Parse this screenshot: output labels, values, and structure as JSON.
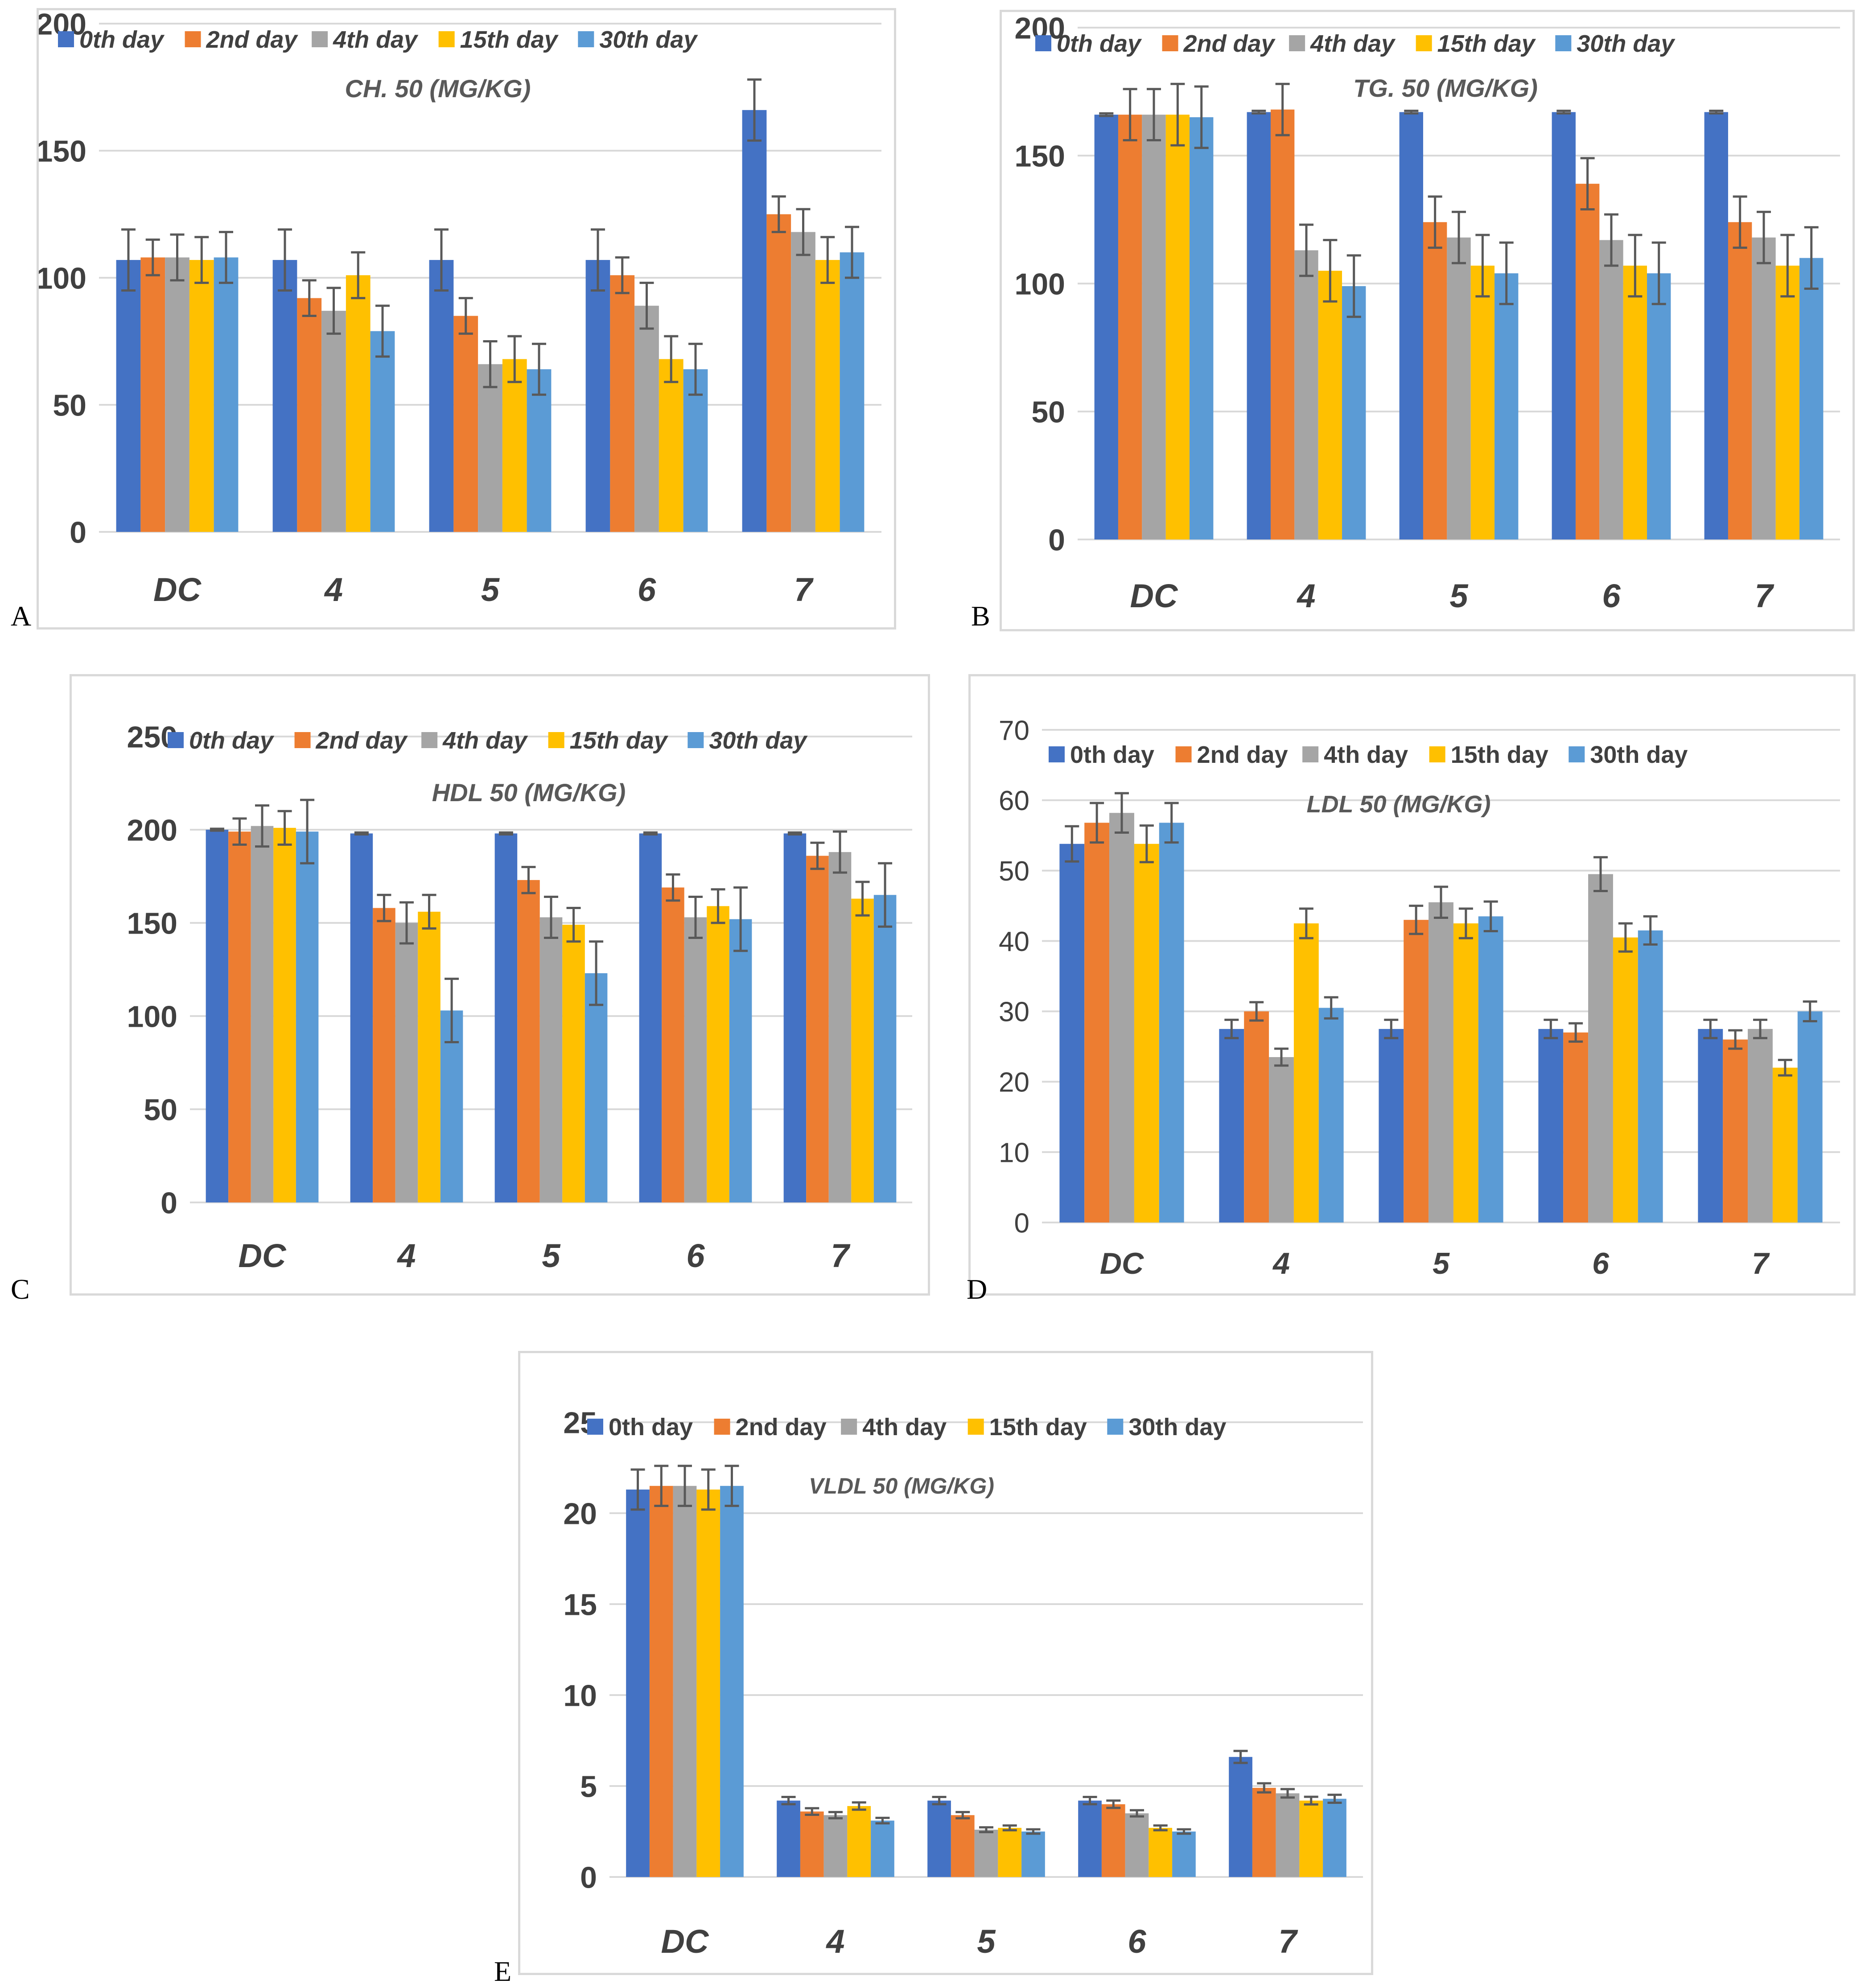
{
  "panel_labels": [
    "A",
    "B",
    "C",
    "D",
    "E"
  ],
  "colors": {
    "series": [
      "#4472C4",
      "#ED7D31",
      "#A5A5A5",
      "#FFC000",
      "#5B9BD5"
    ],
    "grid": "#d9d9d9",
    "error_bar": "#595959",
    "title": "#595959",
    "tick_text": "#404040"
  },
  "chart_data": [
    {
      "type": "bar",
      "title": "CH. 50 (MG/KG)",
      "categories": [
        "DC",
        "4",
        "5",
        "6",
        "7"
      ],
      "ylim": [
        0,
        200
      ],
      "yticks": [
        "0",
        "50",
        "100",
        "150",
        "200"
      ],
      "legend_position": "top",
      "series": [
        {
          "name": "0th day",
          "values": [
            107,
            107,
            107,
            107,
            166
          ],
          "errors": [
            12,
            12,
            12,
            12,
            12
          ]
        },
        {
          "name": "2nd day",
          "values": [
            108,
            92,
            85,
            101,
            125
          ],
          "errors": [
            7,
            7,
            7,
            7,
            7
          ]
        },
        {
          "name": "4th day",
          "values": [
            108,
            87,
            66,
            89,
            118
          ],
          "errors": [
            9,
            9,
            9,
            9,
            9
          ]
        },
        {
          "name": "15th day",
          "values": [
            107,
            101,
            68,
            68,
            107
          ],
          "errors": [
            9,
            9,
            9,
            9,
            9
          ]
        },
        {
          "name": "30th day",
          "values": [
            108,
            79,
            64,
            64,
            110
          ],
          "errors": [
            10,
            10,
            10,
            10,
            10
          ]
        }
      ]
    },
    {
      "type": "bar",
      "title": "TG. 50 (MG/KG)",
      "categories": [
        "DC",
        "4",
        "5",
        "6",
        "7"
      ],
      "ylim": [
        0,
        200
      ],
      "yticks": [
        "0",
        "50",
        "100",
        "150",
        "200"
      ],
      "legend_position": "top",
      "series": [
        {
          "name": "0th day",
          "values": [
            166,
            167,
            167,
            167,
            167
          ],
          "errors": [
            0.5,
            0.5,
            0.5,
            0.5,
            0.5
          ]
        },
        {
          "name": "2nd day",
          "values": [
            166,
            168,
            124,
            139,
            124
          ],
          "errors": [
            10,
            10,
            10,
            10,
            10
          ]
        },
        {
          "name": "4th day",
          "values": [
            166,
            113,
            118,
            117,
            118
          ],
          "errors": [
            10,
            10,
            10,
            10,
            10
          ]
        },
        {
          "name": "15th day",
          "values": [
            166,
            105,
            107,
            107,
            107
          ],
          "errors": [
            12,
            12,
            12,
            12,
            12
          ]
        },
        {
          "name": "30th day",
          "values": [
            165,
            99,
            104,
            104,
            110
          ],
          "errors": [
            12,
            12,
            12,
            12,
            12
          ]
        }
      ]
    },
    {
      "type": "bar",
      "title": "HDL 50 (MG/KG)",
      "categories": [
        "DC",
        "4",
        "5",
        "6",
        "7"
      ],
      "ylim": [
        0,
        250
      ],
      "yticks": [
        "0",
        "50",
        "100",
        "150",
        "200",
        "250"
      ],
      "legend_position": "top",
      "series": [
        {
          "name": "0th day",
          "values": [
            200,
            198,
            198,
            198,
            198
          ],
          "errors": [
            0.5,
            0.5,
            0.5,
            0.5,
            0.5
          ]
        },
        {
          "name": "2nd day",
          "values": [
            199,
            158,
            173,
            169,
            186
          ],
          "errors": [
            7,
            7,
            7,
            7,
            7
          ]
        },
        {
          "name": "4th day",
          "values": [
            202,
            150,
            153,
            153,
            188
          ],
          "errors": [
            11,
            11,
            11,
            11,
            11
          ]
        },
        {
          "name": "15th day",
          "values": [
            201,
            156,
            149,
            159,
            163
          ],
          "errors": [
            9,
            9,
            9,
            9,
            9
          ]
        },
        {
          "name": "30th day",
          "values": [
            199,
            103,
            123,
            152,
            165
          ],
          "errors": [
            17,
            17,
            17,
            17,
            17
          ]
        }
      ]
    },
    {
      "type": "bar",
      "title": "LDL 50 (MG/KG)",
      "categories": [
        "DC",
        "4",
        "5",
        "6",
        "7"
      ],
      "ylim": [
        0,
        70
      ],
      "yticks": [
        "0",
        "10",
        "20",
        "30",
        "40",
        "50",
        "60",
        "70"
      ],
      "legend_position": "top",
      "series": [
        {
          "name": "0th day",
          "values": [
            53.8,
            27.5,
            27.5,
            27.5,
            27.5
          ],
          "errors": [
            2.5,
            1.3,
            1.3,
            1.3,
            1.3
          ]
        },
        {
          "name": "2nd day",
          "values": [
            56.8,
            30,
            43,
            27,
            26
          ],
          "errors": [
            2.8,
            1.3,
            2,
            1.3,
            1.3
          ]
        },
        {
          "name": "4th day",
          "values": [
            58.2,
            23.5,
            45.5,
            49.5,
            27.5
          ],
          "errors": [
            2.8,
            1.2,
            2.2,
            2.4,
            1.3
          ]
        },
        {
          "name": "15th day",
          "values": [
            53.8,
            42.5,
            42.5,
            40.5,
            22
          ],
          "errors": [
            2.6,
            2.1,
            2.1,
            2,
            1.1
          ]
        },
        {
          "name": "30th day",
          "values": [
            56.8,
            30.5,
            43.5,
            41.5,
            30
          ],
          "errors": [
            2.8,
            1.5,
            2.1,
            2,
            1.4
          ]
        }
      ]
    },
    {
      "type": "bar",
      "title": "VLDL 50 (MG/KG)",
      "categories": [
        "DC",
        "4",
        "5",
        "6",
        "7"
      ],
      "ylim": [
        0,
        25
      ],
      "yticks": [
        "0",
        "5",
        "10",
        "15",
        "20",
        "25"
      ],
      "legend_position": "top",
      "series": [
        {
          "name": "0th day",
          "values": [
            21.3,
            4.2,
            4.2,
            4.2,
            6.6
          ],
          "errors": [
            1.1,
            0.2,
            0.2,
            0.2,
            0.33
          ]
        },
        {
          "name": "2nd day",
          "values": [
            21.5,
            3.6,
            3.4,
            4.0,
            4.9
          ],
          "errors": [
            1.1,
            0.18,
            0.17,
            0.2,
            0.25
          ]
        },
        {
          "name": "4th day",
          "values": [
            21.5,
            3.4,
            2.6,
            3.5,
            4.6
          ],
          "errors": [
            1.1,
            0.17,
            0.13,
            0.17,
            0.23
          ]
        },
        {
          "name": "15th day",
          "values": [
            21.3,
            3.9,
            2.7,
            2.7,
            4.2
          ],
          "errors": [
            1.1,
            0.2,
            0.13,
            0.13,
            0.21
          ]
        },
        {
          "name": "30th day",
          "values": [
            21.5,
            3.1,
            2.5,
            2.5,
            4.3
          ],
          "errors": [
            1.1,
            0.15,
            0.12,
            0.12,
            0.22
          ]
        }
      ]
    }
  ]
}
